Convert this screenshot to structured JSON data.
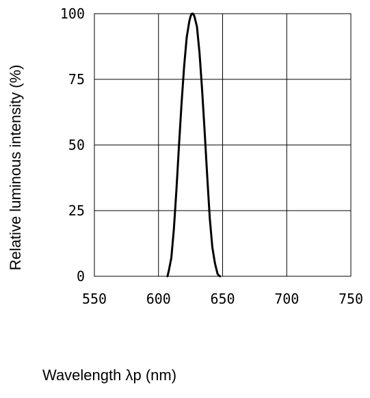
{
  "chart_data": {
    "type": "line",
    "title": "",
    "xlabel": "Wavelength λp (nm)",
    "ylabel": "Relative luminous intensity (%)",
    "xlim": [
      550,
      750
    ],
    "ylim": [
      0,
      100
    ],
    "x_ticks": [
      550,
      600,
      650,
      700,
      750
    ],
    "y_ticks": [
      0,
      25,
      50,
      75,
      100
    ],
    "x_tick_labels": [
      "550",
      "600",
      "650",
      "700",
      "750"
    ],
    "y_tick_labels": [
      "0",
      "25",
      "50",
      "75",
      "100"
    ],
    "grid": true,
    "line_color": "#000000",
    "series": [
      {
        "x": [
          607,
          608,
          610,
          612,
          614,
          616,
          618,
          620,
          622,
          624,
          625,
          626,
          627,
          628,
          629,
          630,
          632,
          634,
          636,
          638,
          640,
          642,
          644,
          646,
          647,
          648
        ],
        "y": [
          0,
          2,
          7,
          18,
          33,
          50,
          66,
          80,
          91,
          97,
          99,
          100,
          100,
          99,
          97,
          95,
          85,
          71,
          55,
          38,
          22,
          11,
          5,
          1,
          0.3,
          0
        ]
      }
    ]
  }
}
